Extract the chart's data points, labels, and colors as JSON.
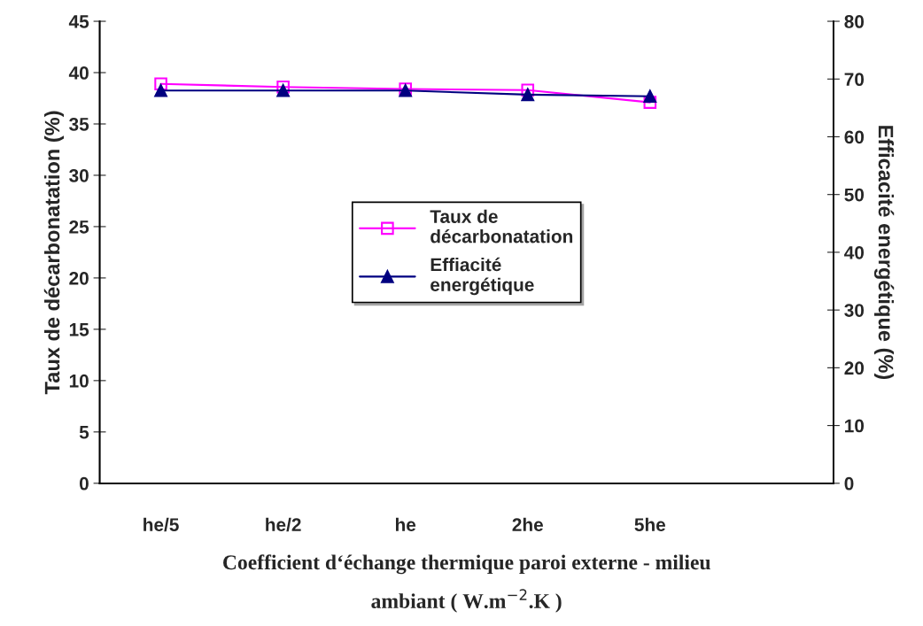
{
  "chart_data": {
    "type": "line",
    "categories": [
      "he/5",
      "he/2",
      "he",
      "2he",
      "5he",
      null
    ],
    "series": [
      {
        "name": "Taux de\ndécarbonatation",
        "color": "#ff00ff",
        "marker": "square",
        "values": [
          38.9,
          38.6,
          38.4,
          38.3,
          37.1,
          null
        ]
      },
      {
        "name": "Effiacité\nenergétique",
        "color": "#000080",
        "marker": "triangle",
        "axis": "y2",
        "values": [
          68.0,
          68.0,
          68.0,
          67.3,
          67.0,
          null
        ]
      }
    ],
    "xlabel": "Coefficient d‘échange thermique paroi externe - milieu\nambiant ( W.m$^{−2}$.K )",
    "ylabel": "Taux de décarbonatation (%)",
    "y2label": "Efficacité energétique (%)",
    "ylim": [
      0,
      45
    ],
    "yticks": [
      0,
      5,
      10,
      15,
      20,
      25,
      30,
      35,
      40,
      45
    ],
    "y2lim": [
      0,
      80
    ],
    "y2ticks": [
      0,
      10,
      20,
      30,
      40,
      50,
      60,
      70,
      80
    ],
    "legend": "center",
    "grid": false
  }
}
